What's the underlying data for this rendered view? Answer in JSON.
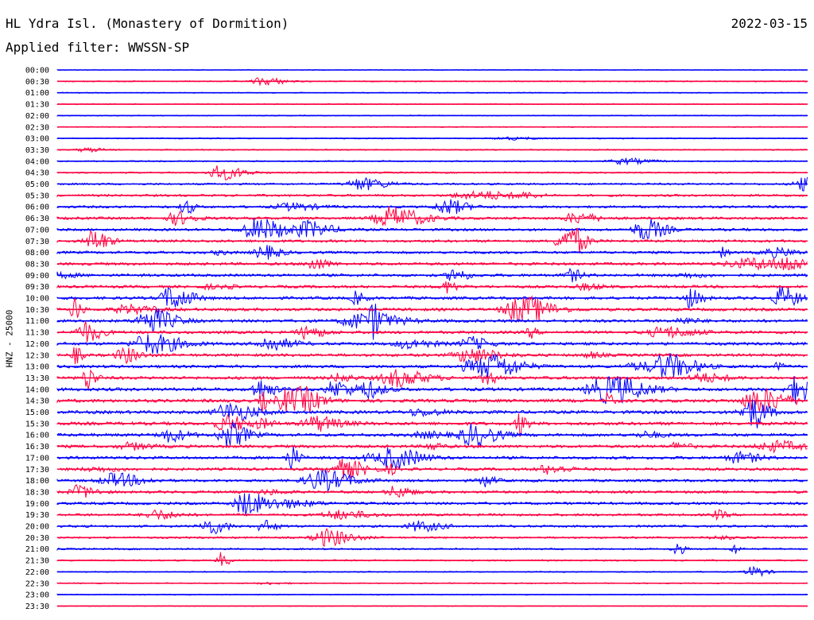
{
  "header": {
    "station": "HL Ydra Isl. (Monastery of Dormition)",
    "date": "2022-03-15",
    "filter": "Applied filter: WWSSN-SP"
  },
  "chart_data": {
    "type": "line",
    "title": "HL Ydra Isl. (Monastery of Dormition)",
    "subtitle": "Applied filter: WWSSN-SP",
    "ylabel": "HNZ - 25000",
    "grid": false,
    "series_colors": [
      "#0000ff",
      "#ff0040"
    ],
    "rows": [
      {
        "time": "00:00",
        "activity": 0.0
      },
      {
        "time": "00:30",
        "activity": 0.1
      },
      {
        "time": "01:00",
        "activity": 0.05
      },
      {
        "time": "01:30",
        "activity": 0.05
      },
      {
        "time": "02:00",
        "activity": 0.05
      },
      {
        "time": "02:30",
        "activity": 0.05
      },
      {
        "time": "03:00",
        "activity": 0.1
      },
      {
        "time": "03:30",
        "activity": 0.1
      },
      {
        "time": "04:00",
        "activity": 0.15
      },
      {
        "time": "04:30",
        "activity": 0.2
      },
      {
        "time": "05:00",
        "activity": 0.3
      },
      {
        "time": "05:30",
        "activity": 0.4
      },
      {
        "time": "06:00",
        "activity": 0.45
      },
      {
        "time": "06:30",
        "activity": 0.5
      },
      {
        "time": "07:00",
        "activity": 0.5
      },
      {
        "time": "07:30",
        "activity": 0.5
      },
      {
        "time": "08:00",
        "activity": 0.5
      },
      {
        "time": "08:30",
        "activity": 0.55
      },
      {
        "time": "09:00",
        "activity": 0.55
      },
      {
        "time": "09:30",
        "activity": 0.55
      },
      {
        "time": "10:00",
        "activity": 0.6
      },
      {
        "time": "10:30",
        "activity": 0.6
      },
      {
        "time": "11:00",
        "activity": 0.6
      },
      {
        "time": "11:30",
        "activity": 0.6
      },
      {
        "time": "12:00",
        "activity": 0.6
      },
      {
        "time": "12:30",
        "activity": 0.6
      },
      {
        "time": "13:00",
        "activity": 0.6
      },
      {
        "time": "13:30",
        "activity": 0.65
      },
      {
        "time": "14:00",
        "activity": 0.7
      },
      {
        "time": "14:30",
        "activity": 0.7
      },
      {
        "time": "15:00",
        "activity": 0.7
      },
      {
        "time": "15:30",
        "activity": 0.7
      },
      {
        "time": "16:00",
        "activity": 0.65
      },
      {
        "time": "16:30",
        "activity": 0.6
      },
      {
        "time": "17:00",
        "activity": 0.6
      },
      {
        "time": "17:30",
        "activity": 0.55
      },
      {
        "time": "18:00",
        "activity": 0.5
      },
      {
        "time": "18:30",
        "activity": 0.5
      },
      {
        "time": "19:00",
        "activity": 0.5
      },
      {
        "time": "19:30",
        "activity": 0.45
      },
      {
        "time": "20:00",
        "activity": 0.4
      },
      {
        "time": "20:30",
        "activity": 0.3
      },
      {
        "time": "21:00",
        "activity": 0.25
      },
      {
        "time": "21:30",
        "activity": 0.2
      },
      {
        "time": "22:00",
        "activity": 0.1
      },
      {
        "time": "22:30",
        "activity": 0.1
      },
      {
        "time": "23:00",
        "activity": 0.05
      },
      {
        "time": "23:30",
        "activity": 0.0
      }
    ]
  }
}
